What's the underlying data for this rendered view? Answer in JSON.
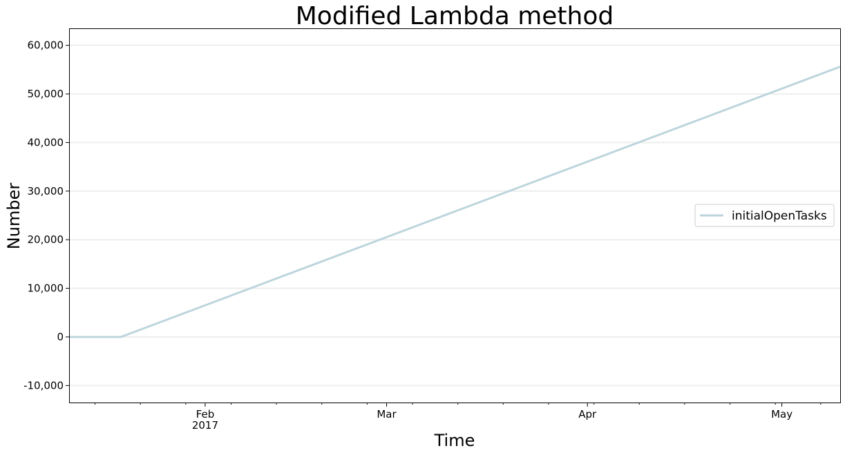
{
  "chart_data": {
    "type": "line",
    "title": "Modified Lambda method",
    "xlabel": "Time",
    "ylabel": "Number",
    "x_range": [
      "2017-01-11",
      "2017-05-10"
    ],
    "ylim": [
      -13500,
      63500
    ],
    "y_ticks": [
      -10000,
      0,
      10000,
      20000,
      30000,
      40000,
      50000,
      60000
    ],
    "y_tick_labels": [
      "-10,000",
      "0",
      "10,000",
      "20,000",
      "30,000",
      "40,000",
      "50,000",
      "60,000"
    ],
    "x_ticks": [
      {
        "date": "2017-02-01",
        "label": "Feb",
        "sublabel": "2017"
      },
      {
        "date": "2017-03-01",
        "label": "Mar",
        "sublabel": ""
      },
      {
        "date": "2017-04-01",
        "label": "Apr",
        "sublabel": ""
      },
      {
        "date": "2017-05-01",
        "label": "May",
        "sublabel": ""
      }
    ],
    "grid": true,
    "legend": {
      "position": "right",
      "entries": [
        "initialOpenTasks"
      ]
    },
    "series": [
      {
        "name": "initialOpenTasks",
        "color": "#bcd5dc",
        "points": [
          {
            "x": "2017-01-11",
            "y": 0
          },
          {
            "x": "2017-01-19",
            "y": 0
          },
          {
            "x": "2017-05-10",
            "y": 55600
          }
        ]
      }
    ]
  }
}
